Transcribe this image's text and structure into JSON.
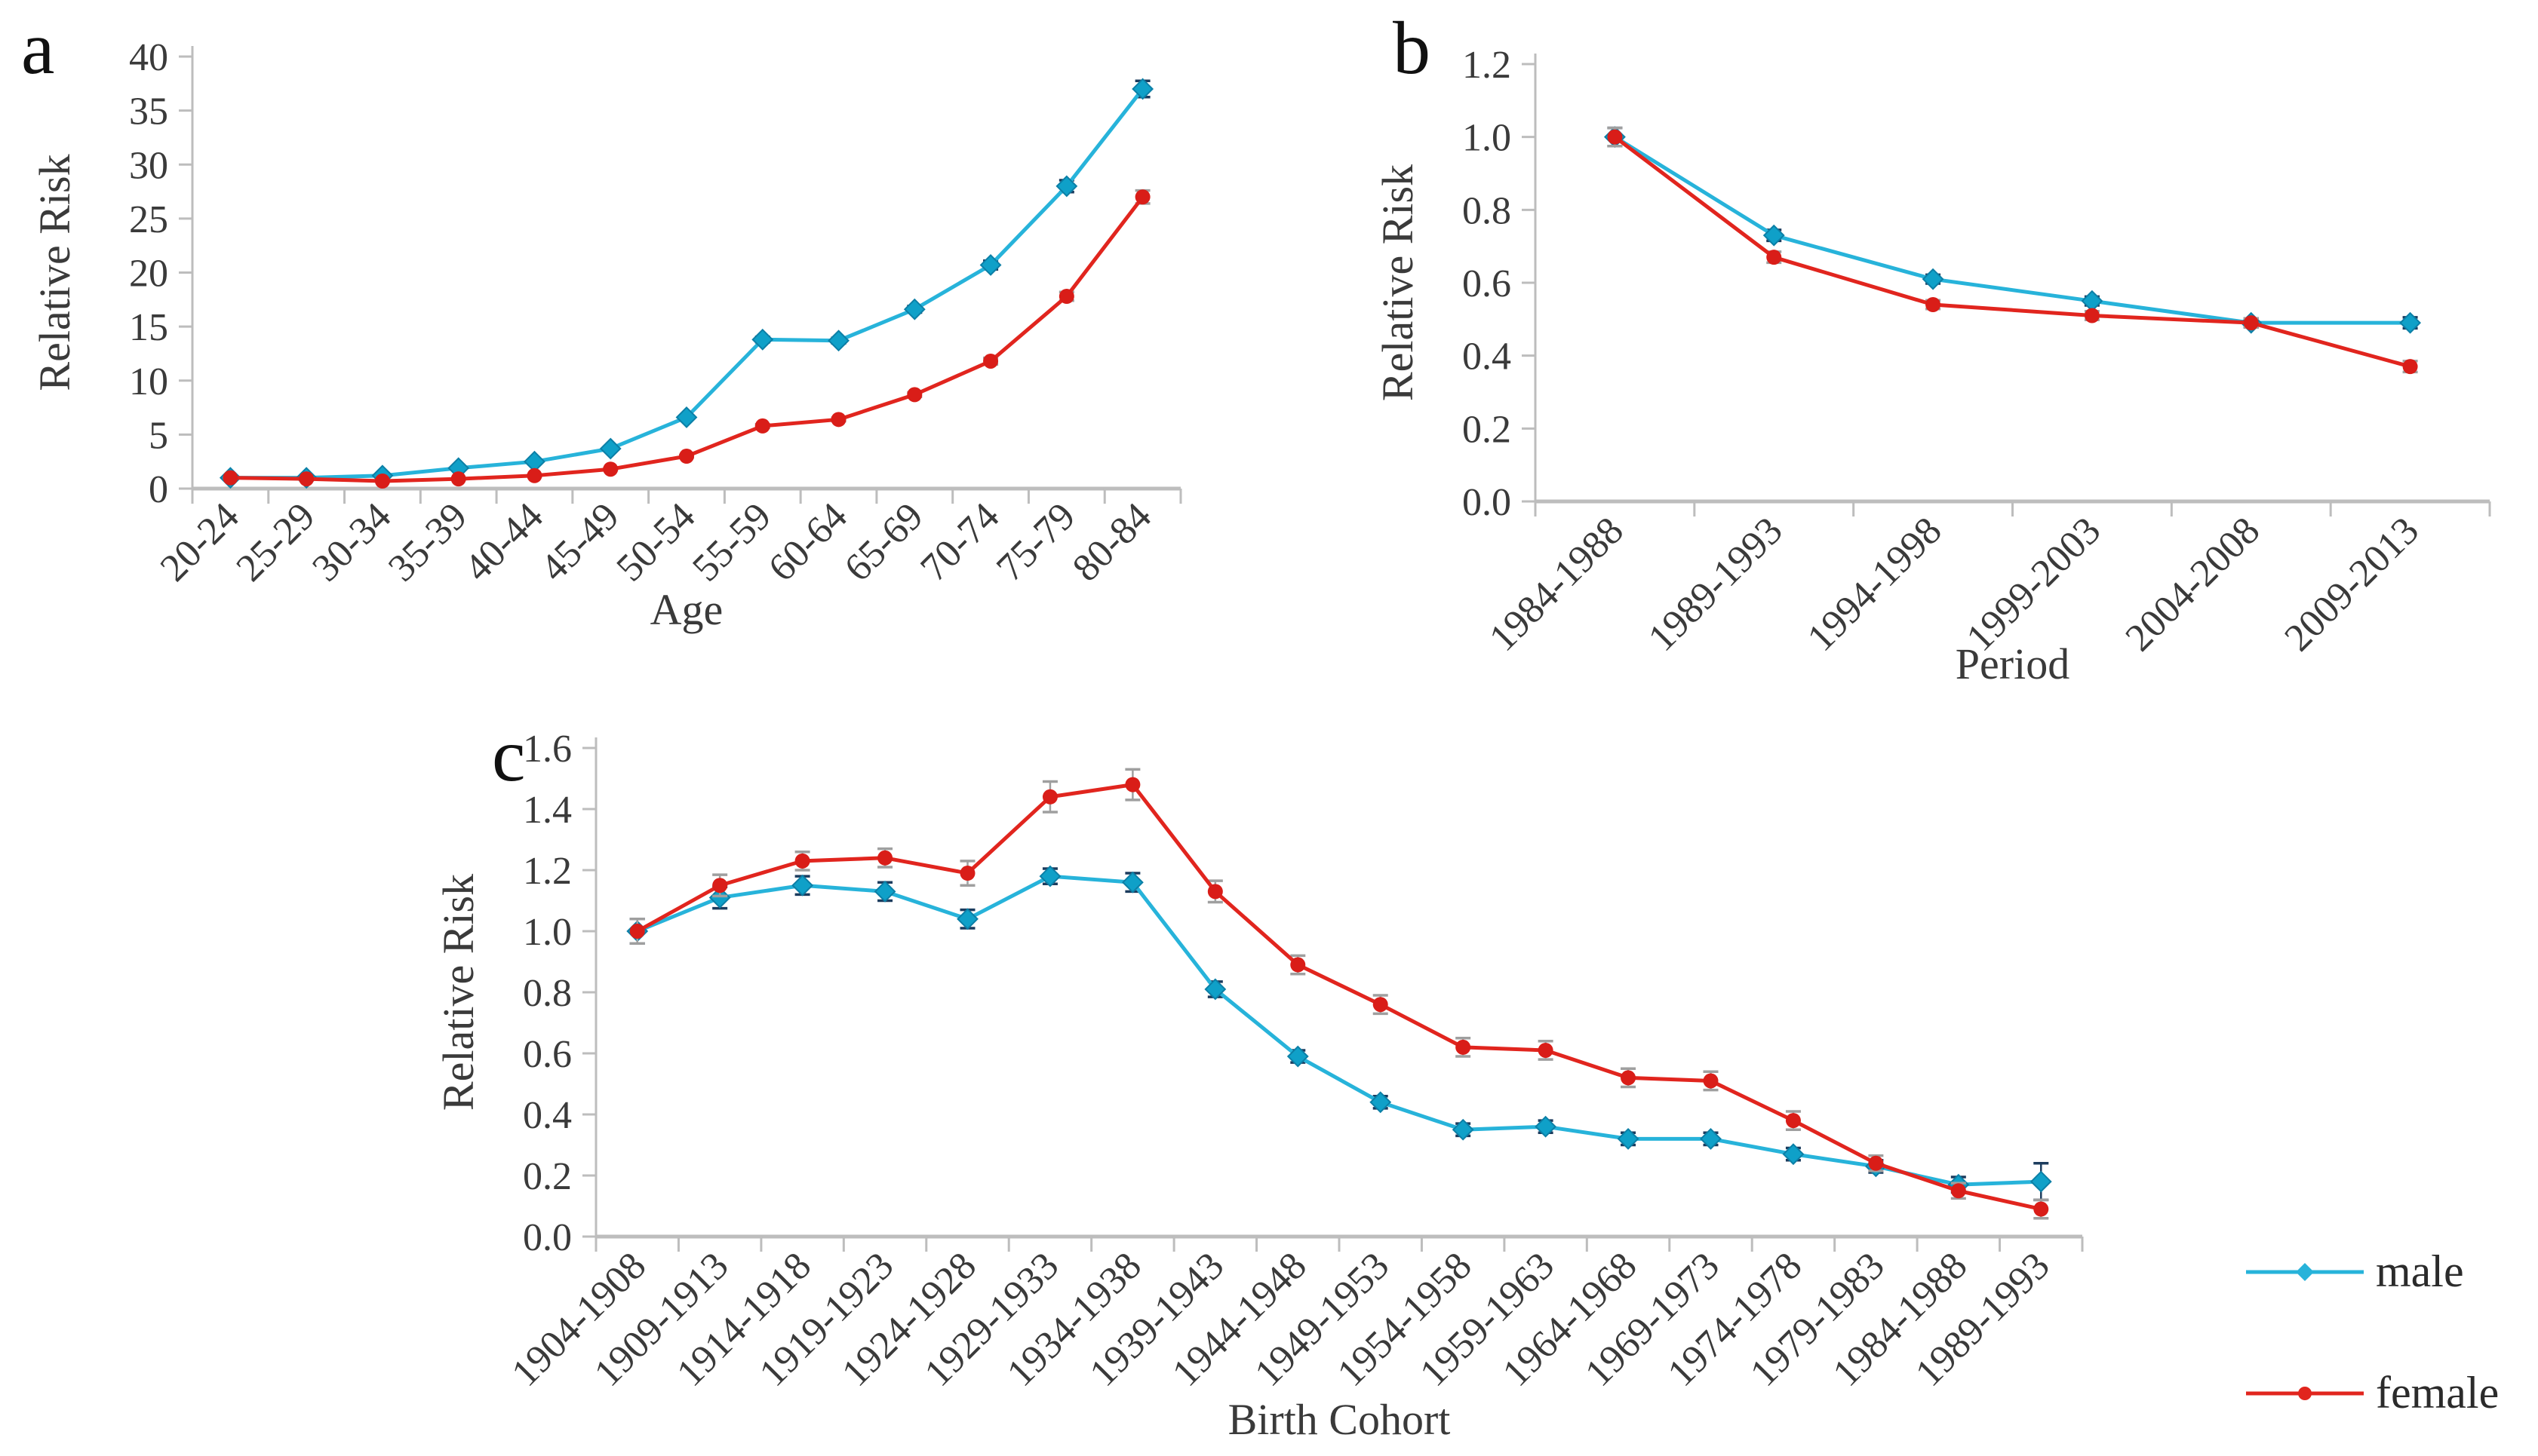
{
  "legend": {
    "position": "bottom-right",
    "items": [
      {
        "label": "male",
        "color": "#27b3da",
        "marker": "diamond"
      },
      {
        "label": "female",
        "color": "#e1251e",
        "marker": "circle"
      }
    ]
  },
  "colors": {
    "male_line": "#27b3da",
    "male_marker": "#0fa0c8",
    "male_marker_edge": "#0c7fa6",
    "male_error": "#1c3c5e",
    "female_line": "#e1251e",
    "female_marker": "#d91d18",
    "female_error": "#9f9f9f",
    "axis": "#bdbdbd",
    "text": "#3a3a3a"
  },
  "chart_data": [
    {
      "id": "a",
      "panel_label": "a",
      "type": "line",
      "title": "",
      "xlabel": "Age",
      "ylabel": "Relative Risk",
      "ylim": [
        0,
        40
      ],
      "ytick_step": 5,
      "ytick_decimals": 0,
      "grid": false,
      "categories": [
        "20-24",
        "25-29",
        "30-34",
        "35-39",
        "40-44",
        "45-49",
        "50-54",
        "55-59",
        "60-64",
        "65-69",
        "70-74",
        "75-79",
        "80-84"
      ],
      "series": [
        {
          "name": "male",
          "values": [
            1.0,
            1.0,
            1.2,
            1.9,
            2.5,
            3.7,
            6.6,
            13.8,
            13.7,
            16.6,
            20.7,
            28.0,
            37.0
          ],
          "errors": [
            0.05,
            0.05,
            0.06,
            0.07,
            0.08,
            0.1,
            0.15,
            0.25,
            0.25,
            0.3,
            0.4,
            0.55,
            0.75
          ]
        },
        {
          "name": "female",
          "values": [
            1.0,
            0.9,
            0.7,
            0.9,
            1.2,
            1.8,
            3.0,
            5.8,
            6.4,
            8.7,
            11.8,
            17.8,
            27.0
          ],
          "errors": [
            0.05,
            0.05,
            0.05,
            0.06,
            0.07,
            0.08,
            0.1,
            0.15,
            0.15,
            0.2,
            0.3,
            0.4,
            0.6
          ]
        }
      ]
    },
    {
      "id": "b",
      "panel_label": "b",
      "type": "line",
      "title": "",
      "xlabel": "Period",
      "ylabel": "Relative Risk",
      "ylim": [
        0,
        1.2
      ],
      "ytick_step": 0.2,
      "ytick_decimals": 1,
      "grid": false,
      "categories": [
        "1984-1988",
        "1989-1993",
        "1994-1998",
        "1999-2003",
        "2004-2008",
        "2009-2013"
      ],
      "series": [
        {
          "name": "male",
          "values": [
            1.0,
            0.73,
            0.61,
            0.55,
            0.49,
            0.49
          ],
          "errors": [
            0.025,
            0.015,
            0.012,
            0.012,
            0.012,
            0.015
          ]
        },
        {
          "name": "female",
          "values": [
            1.0,
            0.67,
            0.54,
            0.51,
            0.49,
            0.37
          ],
          "errors": [
            0.025,
            0.015,
            0.012,
            0.012,
            0.012,
            0.015
          ]
        }
      ]
    },
    {
      "id": "c",
      "panel_label": "c",
      "type": "line",
      "title": "",
      "xlabel": "Birth Cohort",
      "ylabel": "Relative Risk",
      "ylim": [
        0,
        1.6
      ],
      "ytick_step": 0.2,
      "ytick_decimals": 1,
      "grid": false,
      "categories": [
        "1904-1908",
        "1909-1913",
        "1914-1918",
        "1919-1923",
        "1924-1928",
        "1929-1933",
        "1934-1938",
        "1939-1943",
        "1944-1948",
        "1949-1953",
        "1954-1958",
        "1959-1963",
        "1964-1968",
        "1969-1973",
        "1974-1978",
        "1979-1983",
        "1984-1988",
        "1989-1993"
      ],
      "series": [
        {
          "name": "male",
          "values": [
            1.0,
            1.11,
            1.15,
            1.13,
            1.04,
            1.18,
            1.16,
            0.81,
            0.59,
            0.44,
            0.35,
            0.36,
            0.32,
            0.32,
            0.27,
            0.23,
            0.17,
            0.18
          ],
          "errors": [
            0.04,
            0.035,
            0.03,
            0.03,
            0.03,
            0.025,
            0.03,
            0.025,
            0.02,
            0.02,
            0.02,
            0.02,
            0.02,
            0.02,
            0.02,
            0.02,
            0.025,
            0.06
          ]
        },
        {
          "name": "female",
          "values": [
            1.0,
            1.15,
            1.23,
            1.24,
            1.19,
            1.44,
            1.48,
            1.13,
            0.89,
            0.76,
            0.62,
            0.61,
            0.52,
            0.51,
            0.38,
            0.24,
            0.15,
            0.09
          ],
          "errors": [
            0.04,
            0.035,
            0.03,
            0.03,
            0.04,
            0.05,
            0.05,
            0.035,
            0.03,
            0.03,
            0.03,
            0.03,
            0.03,
            0.03,
            0.03,
            0.025,
            0.025,
            0.03
          ]
        }
      ]
    }
  ]
}
